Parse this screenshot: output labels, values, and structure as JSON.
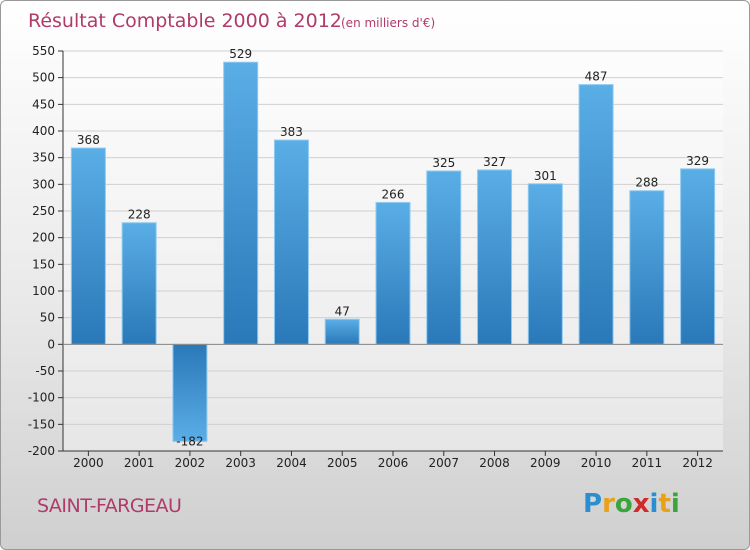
{
  "chart_data": {
    "type": "bar",
    "title": "Résultat Comptable 2000 à 2012",
    "subtitle": "(en milliers d'€)",
    "xlabel": "",
    "ylabel": "",
    "categories": [
      "2000",
      "2001",
      "2002",
      "2003",
      "2004",
      "2005",
      "2006",
      "2007",
      "2008",
      "2009",
      "2010",
      "2011",
      "2012"
    ],
    "values": [
      368,
      228,
      -182,
      529,
      383,
      47,
      266,
      325,
      327,
      301,
      487,
      288,
      329
    ],
    "value_labels": [
      "368",
      "228",
      "-182",
      "529",
      "383",
      "47",
      "266",
      "325",
      "327",
      "301",
      "487",
      "288",
      "329"
    ],
    "ylim": [
      -200,
      550
    ],
    "yticks": [
      "550",
      "500",
      "450",
      "400",
      "350",
      "300",
      "250",
      "200",
      "150",
      "100",
      "50",
      "0",
      "-50",
      "-100",
      "-150",
      "-200"
    ],
    "ytick_values": [
      550,
      500,
      450,
      400,
      350,
      300,
      250,
      200,
      150,
      100,
      50,
      0,
      -50,
      -100,
      -150,
      -200
    ],
    "grid": true,
    "legend": "none",
    "colors": {
      "bar_top": "#5aaee6",
      "bar_bottom": "#2a78b8",
      "neg_top": "#2a78b8",
      "neg_bottom": "#5aaee6",
      "grid": "#d0d0d0",
      "axis": "#333333",
      "title": "#b03a6a"
    }
  },
  "footer": {
    "town": "SAINT-FARGEAU",
    "logo_letters": [
      "P",
      "r",
      "o",
      "x",
      "i",
      "t",
      "i"
    ],
    "logo_colors": [
      "#2a8fd0",
      "#e8a21a",
      "#3aa53a",
      "#d02a2a",
      "#2a8fd0",
      "#e8a21a",
      "#3aa53a"
    ]
  }
}
